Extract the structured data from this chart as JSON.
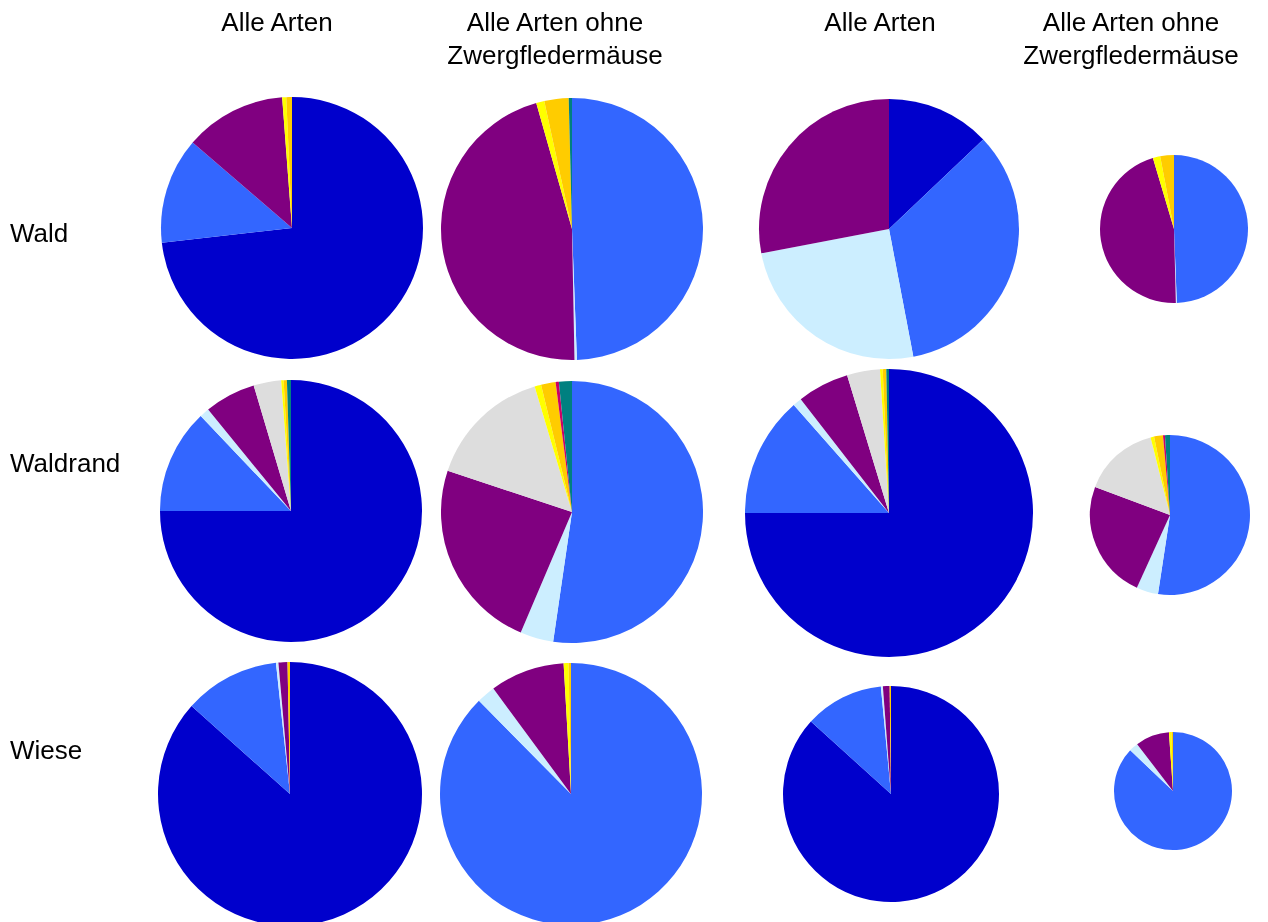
{
  "chart_data": [
    {
      "type": "pie",
      "title": "Alle Arten",
      "ylabel": "Wald",
      "categories": [
        null,
        null,
        null,
        null,
        null,
        null,
        null,
        null,
        null
      ],
      "values": [
        73.2,
        13.1,
        0,
        12.5,
        0,
        0.5,
        0.7,
        0,
        0
      ],
      "colors": [
        "#0000cc",
        "#3366ff",
        "#cceeff",
        "#800080",
        "#dddddd",
        "#ffff00",
        "#ffcc00",
        "#cc0066",
        "#008080"
      ]
    },
    {
      "type": "pie",
      "title": "Alle Arten ohne Zwergfledermäuse",
      "categories": [
        null,
        null,
        null,
        null,
        null,
        null,
        null,
        null,
        null
      ],
      "values": [
        0,
        49.4,
        0.3,
        45.9,
        0,
        1.0,
        3.0,
        0,
        0.4
      ],
      "colors": [
        "#0000cc",
        "#3366ff",
        "#cceeff",
        "#800080",
        "#dddddd",
        "#ffff00",
        "#ffcc00",
        "#cc0066",
        "#008080"
      ]
    },
    {
      "type": "pie",
      "title": "Alle Arten",
      "categories": [
        null,
        null,
        null,
        null,
        null,
        null,
        null,
        null,
        null
      ],
      "values": [
        12.9,
        34.1,
        25.0,
        28.0,
        0,
        0,
        0,
        0,
        0
      ],
      "colors": [
        "#0000cc",
        "#3366ff",
        "#cceeff",
        "#800080",
        "#dddddd",
        "#ffff00",
        "#ffcc00",
        "#cc0066",
        "#008080"
      ]
    },
    {
      "type": "pie",
      "title": "Alle Arten ohne Zwergfledermäuse",
      "categories": [
        null,
        null,
        null,
        null,
        null,
        null,
        null,
        null,
        null
      ],
      "values": [
        0,
        49.4,
        0.2,
        45.8,
        0,
        1.6,
        3.0,
        0,
        0
      ],
      "colors": [
        "#0000cc",
        "#3366ff",
        "#cceeff",
        "#800080",
        "#dddddd",
        "#ffff00",
        "#ffcc00",
        "#cc0066",
        "#008080"
      ]
    },
    {
      "type": "pie",
      "ylabel": "Waldrand",
      "categories": [
        null,
        null,
        null,
        null,
        null,
        null,
        null,
        null,
        null
      ],
      "values": [
        75.0,
        12.9,
        1.2,
        6.3,
        3.4,
        0.3,
        0.4,
        0,
        0.5
      ],
      "colors": [
        "#0000cc",
        "#3366ff",
        "#cceeff",
        "#800080",
        "#dddddd",
        "#ffff00",
        "#ffcc00",
        "#cc0066",
        "#008080"
      ]
    },
    {
      "type": "pie",
      "categories": [
        null,
        null,
        null,
        null,
        null,
        null,
        null,
        null,
        null
      ],
      "values": [
        0,
        52.3,
        4.1,
        23.7,
        15.3,
        0.8,
        1.8,
        0.4,
        1.6
      ],
      "colors": [
        "#0000cc",
        "#3366ff",
        "#cceeff",
        "#800080",
        "#dddddd",
        "#ffff00",
        "#ffcc00",
        "#cc0066",
        "#008080"
      ]
    },
    {
      "type": "pie",
      "categories": [
        null,
        null,
        null,
        null,
        null,
        null,
        null,
        null,
        null
      ],
      "values": [
        75.0,
        13.5,
        1.0,
        5.8,
        3.7,
        0.3,
        0.4,
        0,
        0.3
      ],
      "colors": [
        "#0000cc",
        "#3366ff",
        "#cceeff",
        "#800080",
        "#dddddd",
        "#ffff00",
        "#ffcc00",
        "#cc0066",
        "#008080"
      ]
    },
    {
      "type": "pie",
      "categories": [
        null,
        null,
        null,
        null,
        null,
        null,
        null,
        null,
        null
      ],
      "values": [
        0,
        52.4,
        4.4,
        23.9,
        15.4,
        0.7,
        1.8,
        0.4,
        1.0
      ],
      "colors": [
        "#0000cc",
        "#3366ff",
        "#cceeff",
        "#800080",
        "#dddddd",
        "#ffff00",
        "#ffcc00",
        "#cc0066",
        "#008080"
      ]
    },
    {
      "type": "pie",
      "ylabel": "Wiese",
      "categories": [
        null,
        null,
        null,
        null,
        null,
        null,
        null,
        null,
        null
      ],
      "values": [
        86.6,
        11.7,
        0.3,
        1.1,
        0,
        0,
        0.3,
        0,
        0
      ],
      "colors": [
        "#0000cc",
        "#3366ff",
        "#cceeff",
        "#800080",
        "#dddddd",
        "#ffff00",
        "#ffcc00",
        "#cc0066",
        "#008080"
      ]
    },
    {
      "type": "pie",
      "categories": [
        null,
        null,
        null,
        null,
        null,
        null,
        null,
        null,
        null
      ],
      "values": [
        0,
        87.6,
        2.3,
        9.2,
        0,
        0.6,
        0.3,
        0,
        0
      ],
      "colors": [
        "#0000cc",
        "#3366ff",
        "#cceeff",
        "#800080",
        "#dddddd",
        "#ffff00",
        "#ffcc00",
        "#cc0066",
        "#008080"
      ]
    },
    {
      "type": "pie",
      "categories": [
        null,
        null,
        null,
        null,
        null,
        null,
        null,
        null,
        null
      ],
      "values": [
        86.7,
        11.8,
        0.3,
        1.0,
        0,
        0,
        0.2,
        0,
        0
      ],
      "colors": [
        "#0000cc",
        "#3366ff",
        "#cceeff",
        "#800080",
        "#dddddd",
        "#ffff00",
        "#ffcc00",
        "#cc0066",
        "#008080"
      ]
    },
    {
      "type": "pie",
      "categories": [
        null,
        null,
        null,
        null,
        null,
        null,
        null,
        null,
        null
      ],
      "values": [
        0,
        87.1,
        2.5,
        9.3,
        0,
        0.7,
        0.4,
        0,
        0
      ],
      "colors": [
        "#0000cc",
        "#3366ff",
        "#cceeff",
        "#800080",
        "#dddddd",
        "#ffff00",
        "#ffcc00",
        "#cc0066",
        "#008080"
      ]
    }
  ]
}
